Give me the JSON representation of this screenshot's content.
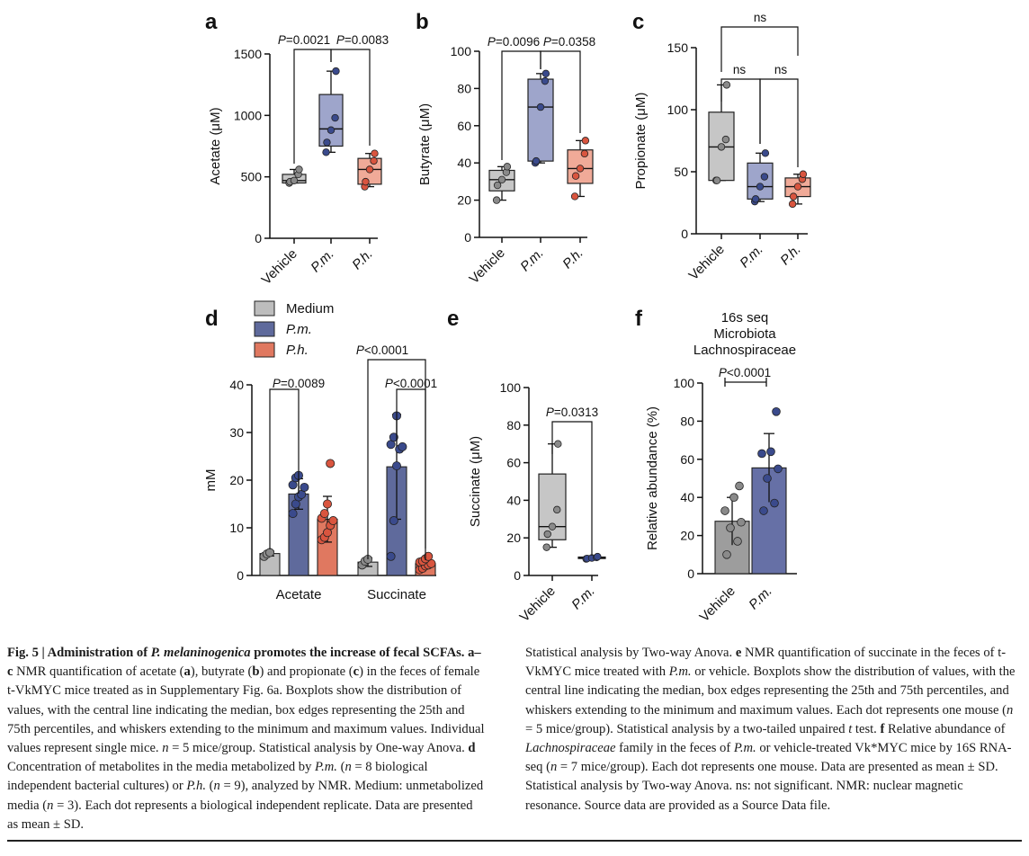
{
  "colors": {
    "vehicle_fill": "#c6c6c6",
    "vehicle_dot": "#8a8a8a",
    "pm_fill": "#9ea5cb",
    "pm_dot": "#3a4a8c",
    "ph_fill": "#f0aa98",
    "ph_dot": "#d9553f",
    "medium_fill": "#bdbdbd",
    "pm_bar": "#5f6a9c",
    "ph_bar": "#e07860",
    "f_vehicle_bar": "#9d9d9d",
    "f_pm_bar": "#6670a6"
  },
  "chart_data": [
    {
      "id": "a",
      "panel_label": "a",
      "type": "box",
      "ylabel": "Acetate (μM)",
      "ylim": [
        0,
        1500
      ],
      "yticks": [
        "0",
        "500",
        "1000",
        "1500"
      ],
      "groups": [
        {
          "label": "Vehicle",
          "color": "vehicle",
          "q1": 450,
          "median": 470,
          "q3": 520,
          "min": 450,
          "max": 560,
          "points": [
            450,
            460,
            470,
            520,
            560
          ]
        },
        {
          "label": "P.m.",
          "color": "pm",
          "q1": 750,
          "median": 890,
          "q3": 1170,
          "min": 700,
          "max": 1360,
          "points": [
            700,
            780,
            880,
            980,
            1360
          ]
        },
        {
          "label": "P.h.",
          "color": "ph",
          "q1": 440,
          "median": 560,
          "q3": 650,
          "min": 420,
          "max": 690,
          "points": [
            420,
            460,
            560,
            630,
            690
          ]
        }
      ],
      "comparisons": [
        {
          "label": "P=0.0021",
          "from": 0,
          "to": 1
        },
        {
          "label": "P=0.0083",
          "from": 1,
          "to": 2
        }
      ]
    },
    {
      "id": "b",
      "panel_label": "b",
      "type": "box",
      "ylabel": "Butyrate (μM)",
      "ylim": [
        0,
        100
      ],
      "yticks": [
        "0",
        "20",
        "40",
        "60",
        "80",
        "100"
      ],
      "groups": [
        {
          "label": "Vehicle",
          "color": "vehicle",
          "q1": 25,
          "median": 31,
          "q3": 36,
          "min": 20,
          "max": 38,
          "points": [
            20,
            28,
            31,
            35,
            38
          ]
        },
        {
          "label": "P.m.",
          "color": "pm",
          "q1": 41,
          "median": 70,
          "q3": 85,
          "min": 40,
          "max": 88,
          "points": [
            40,
            41,
            70,
            84,
            88
          ]
        },
        {
          "label": "P.h.",
          "color": "ph",
          "q1": 29,
          "median": 37,
          "q3": 47,
          "min": 22,
          "max": 52,
          "points": [
            22,
            33,
            37,
            45,
            52
          ]
        }
      ],
      "comparisons": [
        {
          "label": "P=0.0096",
          "from": 0,
          "to": 1
        },
        {
          "label": "P=0.0358",
          "from": 1,
          "to": 2
        }
      ]
    },
    {
      "id": "c",
      "panel_label": "c",
      "type": "box",
      "ylabel": "Propionate (μM)",
      "ylim": [
        0,
        150
      ],
      "yticks": [
        "0",
        "50",
        "100",
        "150"
      ],
      "groups": [
        {
          "label": "Vehicle",
          "color": "vehicle",
          "q1": 43,
          "median": 70,
          "q3": 98,
          "min": 43,
          "max": 120,
          "points": [
            43,
            43,
            70,
            76,
            120
          ]
        },
        {
          "label": "P.m.",
          "color": "pm",
          "q1": 28,
          "median": 38,
          "q3": 57,
          "min": 26,
          "max": 65,
          "points": [
            26,
            28,
            38,
            46,
            65
          ]
        },
        {
          "label": "P.h.",
          "color": "ph",
          "q1": 30,
          "median": 38,
          "q3": 45,
          "min": 24,
          "max": 48,
          "points": [
            24,
            30,
            38,
            44,
            48
          ]
        }
      ],
      "comparisons": [
        {
          "label": "ns",
          "from": 0,
          "to": 1
        },
        {
          "label": "ns",
          "from": 1,
          "to": 2
        },
        {
          "label": "ns",
          "from": 0,
          "to": 2
        }
      ]
    },
    {
      "id": "d",
      "panel_label": "d",
      "type": "bar",
      "ylabel": "mM",
      "ylim": [
        0,
        40
      ],
      "yticks": [
        "0",
        "10",
        "20",
        "30",
        "40"
      ],
      "categories": [
        "Acetate",
        "Succinate"
      ],
      "legend": [
        "Medium",
        "P.m.",
        "P.h."
      ],
      "series": [
        {
          "name": "Medium",
          "values": [
            4.6,
            2.8
          ],
          "sd": [
            0.5,
            0.9
          ],
          "points": [
            [
              4.0,
              4.5,
              4.8
            ],
            [
              2.2,
              3.0,
              3.4
            ]
          ]
        },
        {
          "name": "P.m.",
          "values": [
            17.1,
            22.8
          ],
          "sd": [
            3.2,
            11.0
          ],
          "points": [
            [
              13.0,
              15.0,
              16.5,
              17.0,
              18.5,
              19.0,
              20.5,
              21.0
            ],
            [
              4.0,
              11.5,
              23.0,
              26.5,
              27.0,
              27.5,
              29.0,
              33.5
            ]
          ]
        },
        {
          "name": "P.h.",
          "values": [
            11.8,
            2.5
          ],
          "sd": [
            4.8,
            0.9
          ],
          "points": [
            [
              7.5,
              8.0,
              9.0,
              10.5,
              11.5,
              12.0,
              13.0,
              15.0,
              23.5
            ],
            [
              1.2,
              1.5,
              2.0,
              2.2,
              2.5,
              2.8,
              3.0,
              3.5,
              4.0
            ]
          ]
        }
      ],
      "comparisons": [
        {
          "label": "P=0.0089"
        },
        {
          "label": "P<0.0001"
        },
        {
          "label": "P<0.0001"
        }
      ]
    },
    {
      "id": "e",
      "panel_label": "e",
      "type": "box",
      "ylabel": "Succinate (μM)",
      "ylim": [
        0,
        100
      ],
      "yticks": [
        "0",
        "20",
        "40",
        "60",
        "80",
        "100"
      ],
      "groups": [
        {
          "label": "Vehicle",
          "color": "vehicle",
          "q1": 19,
          "median": 26,
          "q3": 54,
          "min": 15,
          "max": 70,
          "points": [
            15,
            22,
            26,
            35,
            70
          ]
        },
        {
          "label": "P.m.",
          "color": "pm",
          "q1": 9,
          "median": 9.5,
          "q3": 9.8,
          "min": 8.8,
          "max": 10,
          "points": [
            8.8,
            9.0,
            9.3,
            9.6,
            10
          ]
        }
      ],
      "comparisons": [
        {
          "label": "P=0.0313",
          "from": 0,
          "to": 1
        }
      ]
    },
    {
      "id": "f",
      "panel_label": "f",
      "type": "bar",
      "title": [
        "16s seq",
        "Microbiota",
        "Lachnospiraceae"
      ],
      "ylabel": "Relative abundance (%)",
      "ylim": [
        0,
        100
      ],
      "yticks": [
        "0",
        "20",
        "40",
        "60",
        "80",
        "100"
      ],
      "categories": [
        "Vehicle",
        "P.m."
      ],
      "values": [
        27.5,
        55.5
      ],
      "sd": [
        12.5,
        18.0
      ],
      "points": [
        [
          10,
          17,
          24,
          27,
          33,
          40,
          46
        ],
        [
          33,
          37,
          50,
          55,
          63,
          64,
          85
        ]
      ],
      "comparisons": [
        {
          "label": "P<0.0001"
        }
      ]
    }
  ],
  "caption": {
    "left": {
      "fig_no": "Fig. 5 | ",
      "title_1": "Administration of ",
      "title_species": "P. melaninogenica",
      "title_2": " promotes the increase of fecal SCFAs. ",
      "ac": "a–c",
      "p1": " NMR quantification of acetate (",
      "p2": "), butyrate (",
      "p3": ") and propionate (",
      "p4": ") in the feces of female t-VkMYC mice treated as in Supplementary Fig. 6a. Boxplots show the distribution of values, with the central line indicating the median, box edges representing the 25th and 75th percentiles, and whiskers extending to the minimum and maximum values. Individual values represent single mice. ",
      "n1": "n",
      "p5": " = 5 mice/group. Statistical analysis by One-way Anova. ",
      "d": "d",
      "p6": " Concentration of metabolites in the media metabolized by ",
      "pm": "P.m.",
      "p7": " (",
      "n2": "n",
      "p8": " = 8 biological independent bacterial cultures) or ",
      "ph": "P.h.",
      "p9": " (",
      "n3": "n",
      "p10": " = 9), analyzed by NMR. Medium: unmetabolized media (",
      "n4": "n",
      "p11": " = 3). Each dot represents a biological independent replicate. Data are presented as mean ± SD."
    },
    "right": {
      "p1": "Statistical analysis by Two-way Anova. ",
      "e": "e",
      "p2": " NMR quantification of succinate in the feces of t-VkMYC mice treated with ",
      "pm": "P.m.",
      "p3": " or vehicle. Boxplots show the distribution of values, with the central line indicating the median, box edges representing the 25th and 75th percentiles, and whiskers extending to the minimum and maximum values. Each dot represents one mouse (",
      "n1": "n",
      "p4": " = 5 mice/group). Statistical analysis by a two-tailed unpaired ",
      "t": "t",
      "p5": " test. ",
      "f": "f",
      "p6": " Relative abundance of ",
      "lach": "Lachnospiraceae",
      "p7": " family in the feces of ",
      "pm2": "P.m.",
      "p8": " or vehicle-treated Vk*MYC mice by 16S RNA-seq (",
      "n2": "n",
      "p9": " = 7 mice/group). Each dot represents one mouse. Data are presented as mean ± SD. Statistical analysis by Two-way Anova. ns: not significant. NMR: nuclear magnetic resonance. Source data are provided as a Source Data file."
    }
  }
}
